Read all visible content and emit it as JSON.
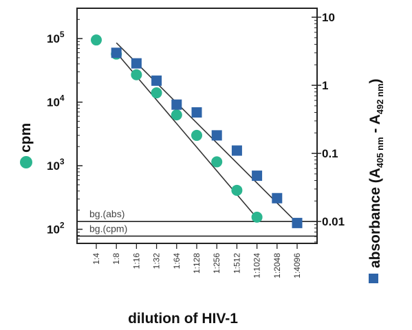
{
  "chart_data": {
    "type": "scatter",
    "categories": [
      "1:4",
      "1:8",
      "1:16",
      "1:32",
      "1:64",
      "1:128",
      "1:256",
      "1:512",
      "1:1024",
      "1:2048",
      "1:4096"
    ],
    "xlabel": "dilution of HIV-1",
    "y_left": {
      "label": "cpm",
      "scale": "log",
      "range": [
        60,
        300000
      ],
      "ticks": [
        {
          "value": 100,
          "base": "10",
          "exp": "2"
        },
        {
          "value": 1000,
          "base": "10",
          "exp": "3"
        },
        {
          "value": 10000,
          "base": "10",
          "exp": "4"
        },
        {
          "value": 100000,
          "base": "10",
          "exp": "5"
        }
      ]
    },
    "y_right": {
      "label": "absorbance (A",
      "sub1": "405 nm",
      "mid": " - A",
      "sub2": "492 nm",
      "end": ")",
      "scale": "log",
      "range": [
        0.00477,
        13.54
      ],
      "ticks": [
        {
          "value": 10,
          "label": "10"
        },
        {
          "value": 1,
          "label": "1"
        },
        {
          "value": 0.1,
          "label": "0.1"
        },
        {
          "value": 0.01,
          "label": "0.01"
        }
      ]
    },
    "series": [
      {
        "name": "cpm",
        "axis": "left",
        "marker": "circle",
        "color": "#2bb58f",
        "points": [
          {
            "x": "1:4",
            "y": 95000
          },
          {
            "x": "1:8",
            "y": 57000
          },
          {
            "x": "1:16",
            "y": 27000
          },
          {
            "x": "1:32",
            "y": 14000
          },
          {
            "x": "1:64",
            "y": 6300
          },
          {
            "x": "1:128",
            "y": 3000
          },
          {
            "x": "1:256",
            "y": 1150
          },
          {
            "x": "1:512",
            "y": 410
          },
          {
            "x": "1:1024",
            "y": 155
          }
        ],
        "fit": {
          "from": {
            "x": "1:8",
            "y": 60000
          },
          "to": {
            "x": "1:1024",
            "y": 150
          }
        }
      },
      {
        "name": "absorbance (A405 nm - A492 nm)",
        "axis": "right",
        "marker": "square",
        "color": "#2e64a8",
        "points": [
          {
            "x": "1:8",
            "y": 3.0
          },
          {
            "x": "1:16",
            "y": 2.1
          },
          {
            "x": "1:32",
            "y": 1.17
          },
          {
            "x": "1:64",
            "y": 0.52
          },
          {
            "x": "1:128",
            "y": 0.4
          },
          {
            "x": "1:256",
            "y": 0.184
          },
          {
            "x": "1:512",
            "y": 0.11
          },
          {
            "x": "1:1024",
            "y": 0.047
          },
          {
            "x": "1:2048",
            "y": 0.022
          },
          {
            "x": "1:4096",
            "y": 0.0095
          }
        ],
        "fit": {
          "from": {
            "x": "1:8",
            "y": 4.2
          },
          "to": {
            "x": "1:4096",
            "y": 0.0095
          }
        }
      }
    ],
    "background_lines": [
      {
        "label": "bg.(abs)",
        "axis": "right",
        "value": 0.01,
        "position": "above-line"
      },
      {
        "label": "bg.(cpm)",
        "axis": "left",
        "value": 78,
        "position": "above-line"
      }
    ],
    "grid": false,
    "legend": "beside-axis-titles"
  }
}
